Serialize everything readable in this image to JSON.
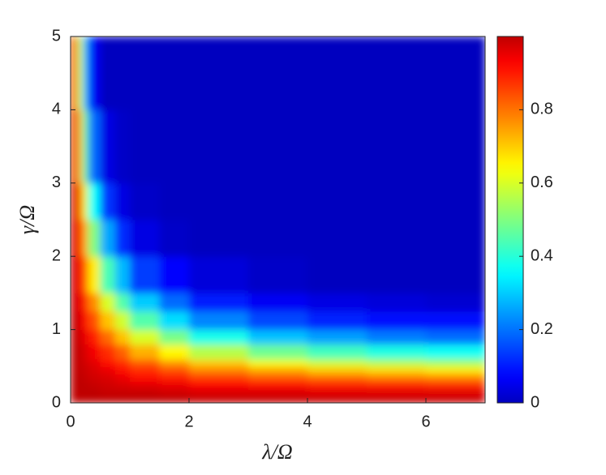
{
  "chart_data": {
    "type": "heatmap",
    "xlabel": "λ/Ω",
    "ylabel": "γ/Ω",
    "colormap": "jet",
    "xlim": [
      0,
      7
    ],
    "xticks": [
      0,
      2,
      4,
      6
    ],
    "ylim": [
      0,
      5
    ],
    "yticks": [
      0,
      1,
      2,
      3,
      4,
      5
    ],
    "x_edges": [
      0,
      0.1,
      0.2,
      0.3,
      0.5,
      0.75,
      1,
      1.5,
      2,
      3,
      4,
      5,
      6,
      7
    ],
    "y_edges": [
      0,
      0.1,
      0.2,
      0.3,
      0.4,
      0.5,
      0.6,
      0.8,
      1,
      1.25,
      1.5,
      2,
      2.5,
      3,
      4,
      5
    ],
    "z": [
      [
        1,
        1,
        1,
        1,
        1,
        1,
        1,
        1,
        0.99,
        0.99,
        0.99,
        0.99,
        0.99
      ],
      [
        1,
        1,
        1,
        1,
        0.99,
        0.99,
        0.99,
        0.98,
        0.97,
        0.97,
        0.96,
        0.96,
        0.96
      ],
      [
        1,
        1,
        1,
        0.99,
        0.98,
        0.97,
        0.96,
        0.95,
        0.93,
        0.91,
        0.9,
        0.89,
        0.88
      ],
      [
        1,
        1,
        0.99,
        0.98,
        0.97,
        0.95,
        0.92,
        0.9,
        0.86,
        0.83,
        0.81,
        0.79,
        0.78
      ],
      [
        1,
        0.99,
        0.99,
        0.97,
        0.95,
        0.92,
        0.88,
        0.84,
        0.78,
        0.74,
        0.7,
        0.68,
        0.66
      ],
      [
        1,
        0.99,
        0.98,
        0.96,
        0.92,
        0.88,
        0.83,
        0.76,
        0.7,
        0.63,
        0.59,
        0.56,
        0.54
      ],
      [
        1,
        0.99,
        0.97,
        0.94,
        0.88,
        0.82,
        0.73,
        0.65,
        0.56,
        0.48,
        0.43,
        0.39,
        0.37
      ],
      [
        1,
        0.98,
        0.95,
        0.9,
        0.81,
        0.71,
        0.6,
        0.49,
        0.38,
        0.29,
        0.25,
        0.21,
        0.19
      ],
      [
        1,
        0.97,
        0.92,
        0.84,
        0.71,
        0.59,
        0.45,
        0.32,
        0.22,
        0.15,
        0.11,
        0.09,
        0.08
      ],
      [
        0.99,
        0.95,
        0.89,
        0.77,
        0.6,
        0.45,
        0.3,
        0.19,
        0.1,
        0.06,
        0.04,
        0.03,
        0.02
      ],
      [
        0.99,
        0.93,
        0.82,
        0.66,
        0.44,
        0.28,
        0.14,
        0.07,
        0.03,
        0.01,
        0,
        0,
        0
      ],
      [
        0.98,
        0.88,
        0.73,
        0.5,
        0.26,
        0.12,
        0.04,
        0.01,
        0,
        0,
        0,
        0,
        0
      ],
      [
        0.98,
        0.83,
        0.62,
        0.36,
        0.13,
        0.04,
        0.01,
        0,
        0,
        0,
        0,
        0,
        0
      ],
      [
        0.96,
        0.73,
        0.46,
        0.19,
        0.04,
        0.01,
        0,
        0,
        0,
        0,
        0,
        0,
        0
      ],
      [
        0.94,
        0.6,
        0.28,
        0.06,
        0,
        0,
        0,
        0,
        0,
        0,
        0,
        0,
        0
      ]
    ],
    "clim": [
      0,
      1
    ],
    "colorbar_ticks": [
      0,
      0.2,
      0.4,
      0.6,
      0.8
    ]
  }
}
